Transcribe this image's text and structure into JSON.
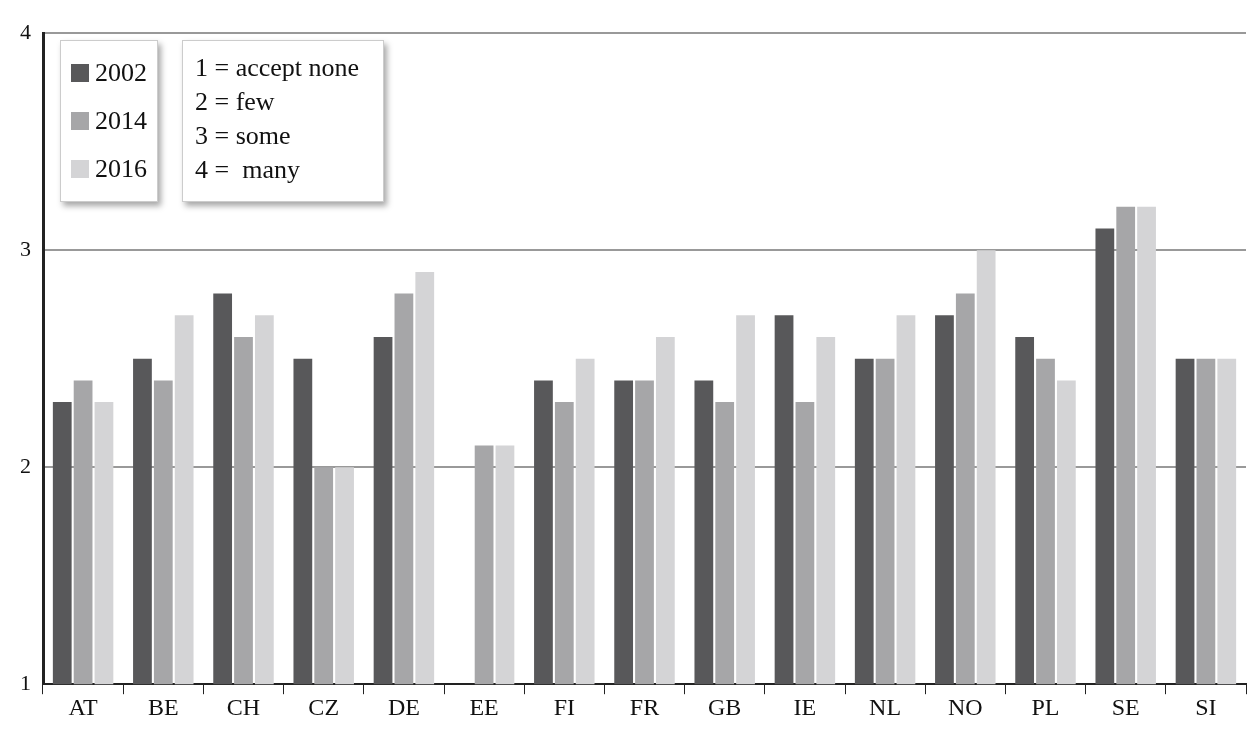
{
  "chart_data": {
    "type": "bar",
    "categories": [
      "AT",
      "BE",
      "CH",
      "CZ",
      "DE",
      "EE",
      "FI",
      "FR",
      "GB",
      "IE",
      "NL",
      "NO",
      "PL",
      "SE",
      "SI"
    ],
    "series": [
      {
        "name": "2002",
        "color": "#58585a",
        "values": [
          2.3,
          2.5,
          2.8,
          2.5,
          2.6,
          null,
          2.4,
          2.4,
          2.4,
          2.7,
          2.5,
          2.7,
          2.6,
          3.1,
          2.5
        ]
      },
      {
        "name": "2014",
        "color": "#a6a6a8",
        "values": [
          2.4,
          2.4,
          2.6,
          2.0,
          2.8,
          2.1,
          2.3,
          2.4,
          2.3,
          2.3,
          2.5,
          2.8,
          2.5,
          3.2,
          2.5
        ]
      },
      {
        "name": "2016",
        "color": "#d4d4d6",
        "values": [
          2.3,
          2.7,
          2.7,
          2.0,
          2.9,
          2.1,
          2.5,
          2.6,
          2.7,
          2.6,
          2.7,
          3.0,
          2.4,
          3.2,
          2.5
        ]
      }
    ],
    "ylim": [
      1,
      4
    ],
    "yticks": [
      1,
      2,
      3,
      4
    ],
    "grid": "y",
    "legend": "top left",
    "annotations": [
      "1 = accept none",
      "2 = few",
      "3 = some",
      "4 =  many"
    ]
  }
}
